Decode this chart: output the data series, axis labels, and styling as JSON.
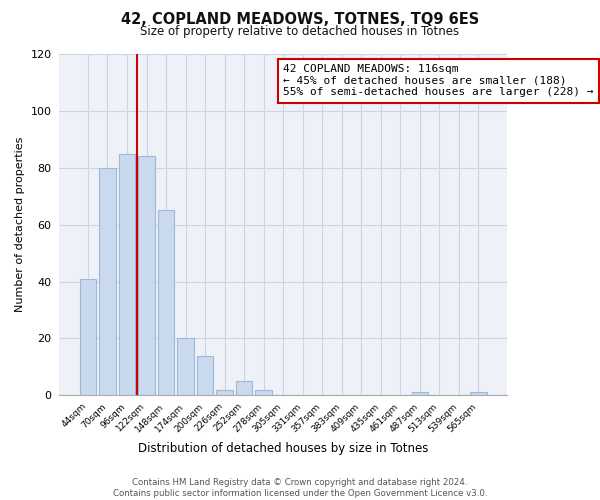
{
  "title": "42, COPLAND MEADOWS, TOTNES, TQ9 6ES",
  "subtitle": "Size of property relative to detached houses in Totnes",
  "xlabel": "Distribution of detached houses by size in Totnes",
  "ylabel": "Number of detached properties",
  "bar_labels": [
    "44sqm",
    "70sqm",
    "96sqm",
    "122sqm",
    "148sqm",
    "174sqm",
    "200sqm",
    "226sqm",
    "252sqm",
    "278sqm",
    "305sqm",
    "331sqm",
    "357sqm",
    "383sqm",
    "409sqm",
    "435sqm",
    "461sqm",
    "487sqm",
    "513sqm",
    "539sqm",
    "565sqm"
  ],
  "bar_values": [
    41,
    80,
    85,
    84,
    65,
    20,
    14,
    2,
    5,
    2,
    0,
    0,
    0,
    0,
    0,
    0,
    0,
    1,
    0,
    0,
    1
  ],
  "bar_color": "#c9d9ee",
  "bar_edge_color": "#a0b8d8",
  "vline_x_index": 2.5,
  "vline_color": "#cc0000",
  "ylim": [
    0,
    120
  ],
  "yticks": [
    0,
    20,
    40,
    60,
    80,
    100,
    120
  ],
  "annotation_title": "42 COPLAND MEADOWS: 116sqm",
  "annotation_line1": "← 45% of detached houses are smaller (188)",
  "annotation_line2": "55% of semi-detached houses are larger (228) →",
  "annotation_box_color": "#ffffff",
  "annotation_box_edge": "#cc0000",
  "footer_line1": "Contains HM Land Registry data © Crown copyright and database right 2024.",
  "footer_line2": "Contains public sector information licensed under the Open Government Licence v3.0.",
  "background_color": "#ffffff",
  "plot_bg_color": "#eef2f8",
  "grid_color": "#c8d4e8"
}
